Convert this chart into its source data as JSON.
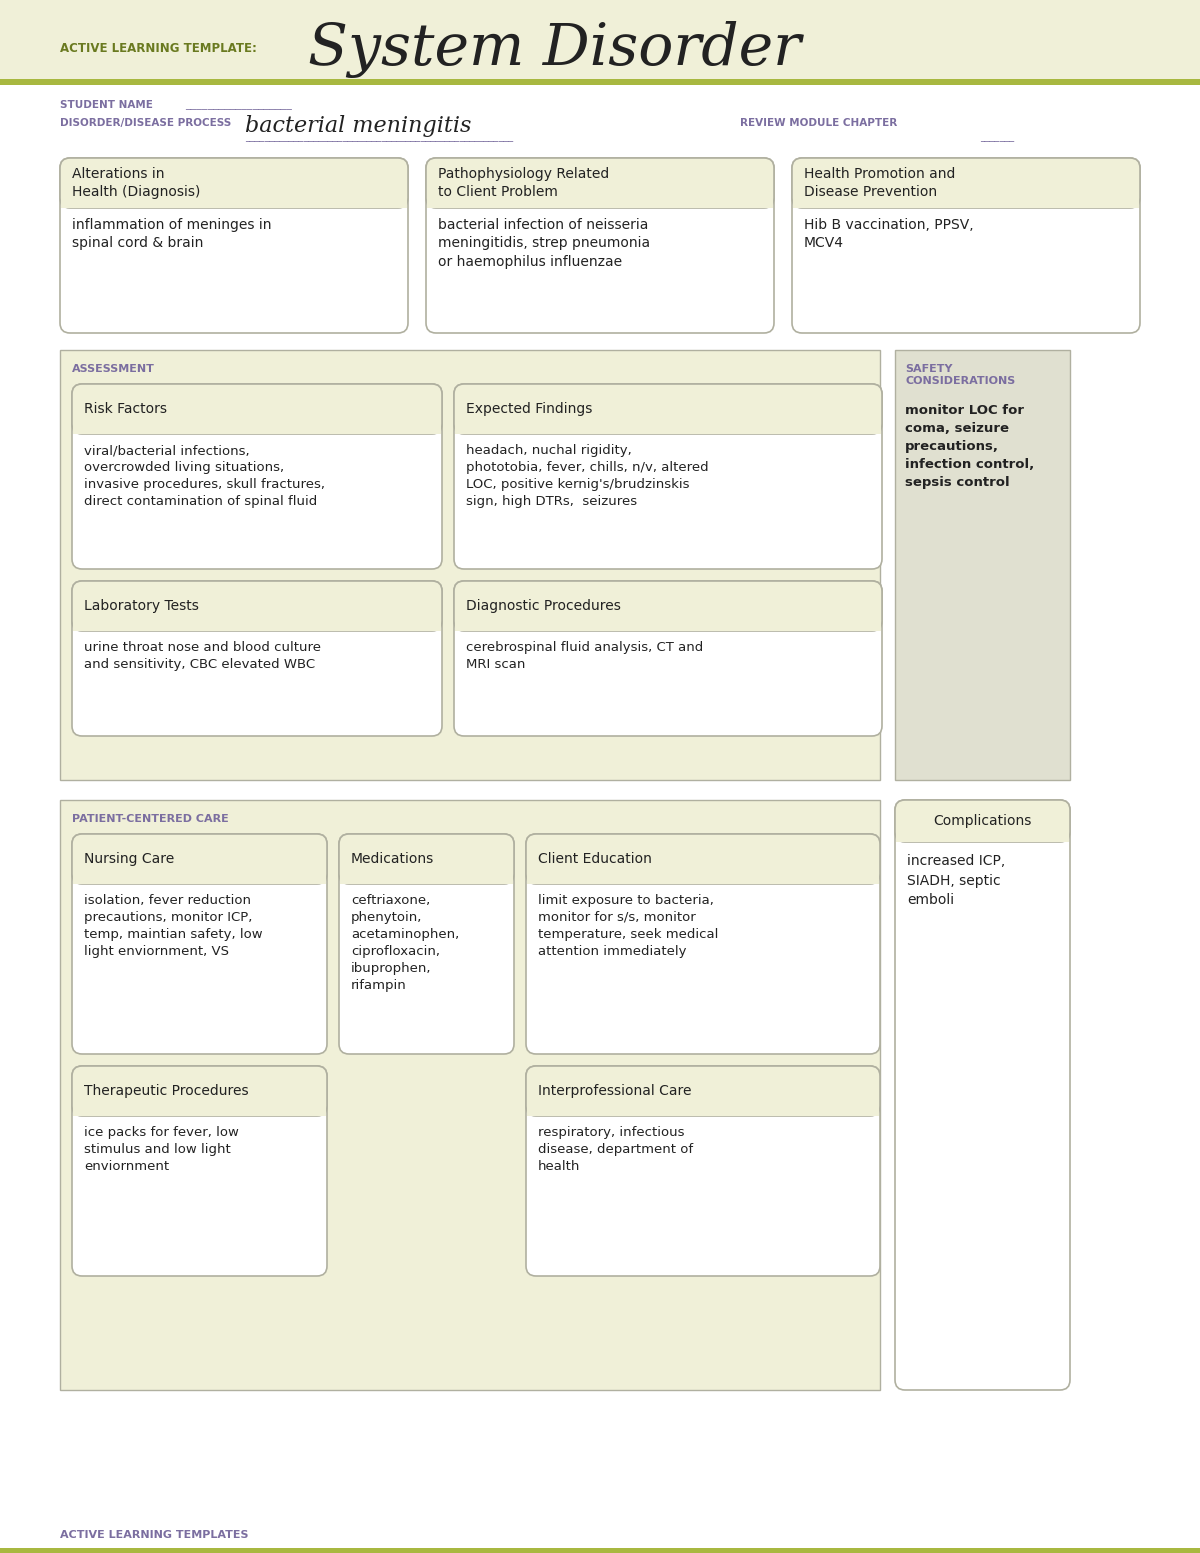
{
  "bg_color": "#f0f0d8",
  "white": "#ffffff",
  "box_bg": "#f0f0d8",
  "box_border": "#b0b0a0",
  "safety_bg": "#e0e0d0",
  "purple": "#7b6ea0",
  "olive": "#8a9a2a",
  "stripe_color": "#a8b840",
  "dark_text": "#222222",
  "title_text": "System Disorder",
  "active_learning_label": "ACTIVE LEARNING TEMPLATE:",
  "student_name_label": "STUDENT NAME",
  "disorder_label": "DISORDER/DISEASE PROCESS",
  "disorder_value": "bacterial meningitis",
  "review_label": "REVIEW MODULE CHAPTER",
  "section1_title": "Alterations in\nHealth (Diagnosis)",
  "section1_body": "inflammation of meninges in\nspinal cord & brain",
  "section2_title": "Pathophysiology Related\nto Client Problem",
  "section2_body": "bacterial infection of neisseria\nmeningitidis, strep pneumonia\nor haemophilus influenzae",
  "section3_title": "Health Promotion and\nDisease Prevention",
  "section3_body": "Hib B vaccination, PPSV,\nMCV4",
  "assessment_label": "ASSESSMENT",
  "safety_label": "SAFETY\nCONSIDERATIONS",
  "safety_body": "monitor LOC for\ncoma, seizure\nprecautions,\ninfection control,\nsepsis control",
  "risk_title": "Risk Factors",
  "risk_body": "viral/bacterial infections,\novercrowded living situations,\ninvasive procedures, skull fractures,\ndirect contamination of spinal fluid",
  "expected_title": "Expected Findings",
  "expected_body": "headach, nuchal rigidity,\nphototobia, fever, chills, n/v, altered\nLOC, positive kernig's/brudzinskis\nsign, high DTRs,  seizures",
  "lab_title": "Laboratory Tests",
  "lab_body": "urine throat nose and blood culture\nand sensitivity, CBC elevated WBC",
  "diag_title": "Diagnostic Procedures",
  "diag_body": "cerebrospinal fluid analysis, CT and\nMRI scan",
  "patient_care_label": "PATIENT-CENTERED CARE",
  "nursing_title": "Nursing Care",
  "nursing_body": "isolation, fever reduction\nprecautions, monitor ICP,\ntemp, maintian safety, low\nlight enviornment, VS",
  "med_title": "Medications",
  "med_body": "ceftriaxone,\nphenytoin,\nacetaminophen,\nciprofloxacin,\nibuprophen,\nrifampin",
  "client_ed_title": "Client Education",
  "client_ed_body": "limit exposure to bacteria,\nmonitor for s/s, monitor\ntemperature, seek medical\nattention immediately",
  "complications_title": "Complications",
  "complications_body": "increased ICP,\nSIADH, septic\nemboli",
  "therapeutic_title": "Therapeutic Procedures",
  "therapeutic_body": "ice packs for fever, low\nstimulus and low light\nenviornment",
  "interpro_title": "Interprofessional Care",
  "interpro_body": "respiratory, infectious\ndisease, department of\nhealth",
  "footer_label": "ACTIVE LEARNING TEMPLATES"
}
